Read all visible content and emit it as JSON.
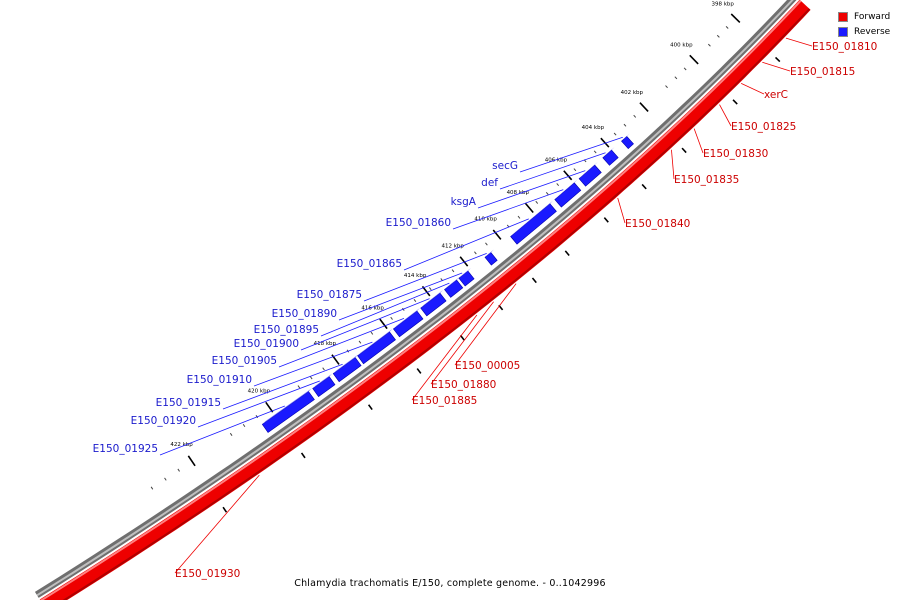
{
  "legend": {
    "forward_label": "Forward",
    "reverse_label": "Reverse",
    "forward_color": "#ee0000",
    "reverse_color": "#1a1aff"
  },
  "caption": "Chlamydia trachomatis E/150, complete genome. - 0..1042996",
  "ticks": [
    "398 kbp",
    "400 kbp",
    "402 kbp",
    "404 kbp",
    "406 kbp",
    "408 kbp",
    "410 kbp",
    "412 kbp",
    "414 kbp",
    "416 kbp",
    "418 kbp",
    "420 kbp",
    "422 kbp"
  ],
  "forward_labels": [
    "E150_01810",
    "E150_01815",
    "xerC",
    "E150_01825",
    "E150_01830",
    "E150_01835",
    "E150_01840",
    "E150_00005",
    "E150_01880",
    "E150_01885",
    "E150_01930"
  ],
  "reverse_labels": [
    "secG",
    "def",
    "ksgA",
    "E150_01860",
    "E150_01865",
    "E150_01875",
    "E150_01890",
    "E150_01895",
    "E150_01900",
    "E150_01905",
    "E150_01910",
    "E150_01915",
    "E150_01920",
    "E150_01925"
  ]
}
